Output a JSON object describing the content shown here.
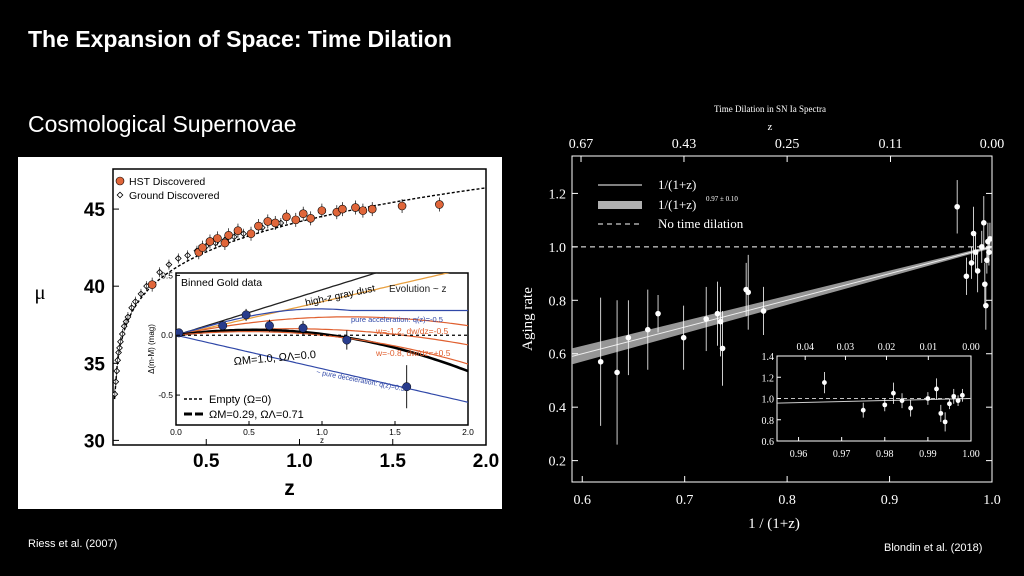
{
  "slide": {
    "title": "The Expansion of Space: Time Dilation",
    "subtitle": "Cosmological Supernovae",
    "credit_left": "Riess et al. (2007)",
    "credit_right": "Blondin et al. (2018)"
  },
  "chart_data": [
    {
      "type": "scatter",
      "xlabel": "z",
      "ylabel": "μ",
      "xlim": [
        0,
        2.0
      ],
      "ylim": [
        29.7,
        47.6
      ],
      "xticks": [
        "0.5",
        "1.0",
        "1.5",
        "2.0"
      ],
      "xtick_values": [
        0.5,
        1.0,
        1.5,
        2.0
      ],
      "yticks": [
        "30",
        "35",
        "40",
        "45"
      ],
      "ytick_values": [
        30,
        35,
        40,
        45
      ],
      "legend": [
        "HST Discovered",
        "Ground Discovered"
      ],
      "colors": {
        "hst": "#e0663a",
        "ground": "#000000",
        "binned": "#283c8c"
      },
      "series": [
        {
          "name": "HST Discovered",
          "points": [
            [
              0.21,
              40.1
            ],
            [
              0.46,
              42.2
            ],
            [
              0.48,
              42.5
            ],
            [
              0.52,
              42.9
            ],
            [
              0.56,
              43.1
            ],
            [
              0.6,
              42.8
            ],
            [
              0.62,
              43.3
            ],
            [
              0.67,
              43.6
            ],
            [
              0.74,
              43.4
            ],
            [
              0.78,
              43.9
            ],
            [
              0.83,
              44.2
            ],
            [
              0.87,
              44.1
            ],
            [
              0.93,
              44.5
            ],
            [
              0.98,
              44.3
            ],
            [
              1.02,
              44.7
            ],
            [
              1.06,
              44.4
            ],
            [
              1.12,
              44.9
            ],
            [
              1.2,
              44.8
            ],
            [
              1.23,
              45.0
            ],
            [
              1.3,
              45.1
            ],
            [
              1.34,
              44.9
            ],
            [
              1.39,
              45.0
            ],
            [
              1.55,
              45.2
            ],
            [
              1.75,
              45.3
            ]
          ]
        },
        {
          "name": "Ground Discovered",
          "points": [
            [
              0.01,
              33.0
            ],
            [
              0.015,
              33.8
            ],
            [
              0.02,
              34.5
            ],
            [
              0.025,
              35.2
            ],
            [
              0.03,
              35.7
            ],
            [
              0.035,
              36.0
            ],
            [
              0.04,
              36.4
            ],
            [
              0.05,
              36.9
            ],
            [
              0.06,
              37.4
            ],
            [
              0.07,
              37.7
            ],
            [
              0.08,
              38.0
            ],
            [
              0.1,
              38.6
            ],
            [
              0.12,
              39.0
            ],
            [
              0.15,
              39.5
            ],
            [
              0.18,
              40.0
            ],
            [
              0.25,
              40.9
            ],
            [
              0.3,
              41.4
            ],
            [
              0.35,
              41.8
            ],
            [
              0.4,
              42.0
            ],
            [
              0.45,
              42.3
            ],
            [
              0.5,
              42.6
            ],
            [
              0.55,
              42.8
            ],
            [
              0.6,
              43.0
            ],
            [
              0.65,
              43.2
            ],
            [
              0.7,
              43.4
            ],
            [
              0.8,
              43.8
            ],
            [
              0.9,
              44.1
            ]
          ]
        }
      ],
      "inset": {
        "title": "Binned Gold data",
        "xlabel": "z",
        "ylabel": "Δ(m-M) (mag)",
        "xlim": [
          0,
          2.0
        ],
        "ylim": [
          -0.75,
          0.52
        ],
        "xticks": [
          "0.0",
          "0.5",
          "1.0",
          "1.5",
          "2.0"
        ],
        "xtick_values": [
          0,
          0.5,
          1.0,
          1.5,
          2.0
        ],
        "yticks": [
          "-0.5",
          "0.0",
          "0.5"
        ],
        "ytick_values": [
          -0.5,
          0,
          0.5
        ],
        "binned_points": [
          [
            0.02,
            0.02,
            0.02
          ],
          [
            0.32,
            0.08,
            0.04
          ],
          [
            0.48,
            0.17,
            0.05
          ],
          [
            0.64,
            0.08,
            0.05
          ],
          [
            0.87,
            0.06,
            0.06
          ],
          [
            1.17,
            -0.04,
            0.08
          ],
          [
            1.58,
            -0.43,
            0.18
          ]
        ],
        "curve_labels": {
          "gray_dust": "high-z gray dust",
          "evolution": "Evolution ~ z",
          "acceleration": "pure acceleration: q(z)=-0.5",
          "w1": "w=-1.2, dw/dz=-0.5",
          "w2": "w=-0.8, dw/dz=+0.5",
          "omega": "ΩM=1.0, ΩΛ=0.0",
          "deceleration": "~ pure deceleration: q(z)=0.5"
        },
        "legend": [
          "Empty (Ω=0)",
          "ΩM=0.29, ΩΛ=0.71"
        ]
      }
    },
    {
      "type": "scatter",
      "title": "Time Dilation in SN Ia Spectra",
      "xlabel": "1 / (1+z)",
      "ylabel": "Aging rate",
      "top_axis_label": "z",
      "xlim": [
        0.59,
        1.0
      ],
      "ylim": [
        0.12,
        1.34
      ],
      "xticks": [
        "0.6",
        "0.7",
        "0.8",
        "0.9",
        "1.0"
      ],
      "xtick_values": [
        0.6,
        0.7,
        0.8,
        0.9,
        1.0
      ],
      "yticks": [
        "0.2",
        "0.4",
        "0.6",
        "0.8",
        "1.0",
        "1.2"
      ],
      "ytick_values": [
        0.2,
        0.4,
        0.6,
        0.8,
        1.0,
        1.2
      ],
      "top_ticks": [
        "0.67",
        "0.43",
        "0.25",
        "0.11",
        "0.00"
      ],
      "legend": [
        "1/(1+z)",
        "1/(1+z)",
        "No time dilation"
      ],
      "legend_exponent": "0.97 ± 0.10",
      "points": [
        [
          0.618,
          0.57,
          0.24
        ],
        [
          0.634,
          0.53,
          0.27
        ],
        [
          0.645,
          0.66,
          0.14
        ],
        [
          0.664,
          0.69,
          0.15
        ],
        [
          0.674,
          0.75,
          0.07
        ],
        [
          0.699,
          0.66,
          0.12
        ],
        [
          0.721,
          0.73,
          0.12
        ],
        [
          0.732,
          0.75,
          0.12
        ],
        [
          0.735,
          0.72,
          0.13
        ],
        [
          0.737,
          0.62,
          0.14
        ],
        [
          0.76,
          0.84,
          0.1
        ],
        [
          0.762,
          0.83,
          0.14
        ],
        [
          0.777,
          0.76,
          0.09
        ],
        [
          0.966,
          1.15,
          0.1
        ],
        [
          0.975,
          0.89,
          0.07
        ],
        [
          0.98,
          0.94,
          0.06
        ],
        [
          0.982,
          1.05,
          0.1
        ],
        [
          0.984,
          0.98,
          0.07
        ],
        [
          0.986,
          0.91,
          0.08
        ],
        [
          0.99,
          1.0,
          0.06
        ],
        [
          0.992,
          1.09,
          0.1
        ],
        [
          0.993,
          0.86,
          0.08
        ],
        [
          0.994,
          0.78,
          0.09
        ],
        [
          0.995,
          0.95,
          0.05
        ],
        [
          0.996,
          1.02,
          0.07
        ],
        [
          0.997,
          0.98,
          0.05
        ],
        [
          0.998,
          1.03,
          0.06
        ]
      ],
      "inset": {
        "xlim": [
          0.955,
          1.0
        ],
        "ylim": [
          0.6,
          1.4
        ],
        "xticks": [
          "0.96",
          "0.97",
          "0.98",
          "0.99",
          "1.00"
        ],
        "xtick_values": [
          0.96,
          0.97,
          0.98,
          0.99,
          1.0
        ],
        "yticks": [
          "0.6",
          "0.8",
          "1.0",
          "1.2",
          "1.4"
        ],
        "ytick_values": [
          0.6,
          0.8,
          1.0,
          1.2,
          1.4
        ],
        "top_ticks": [
          "0.04",
          "0.03",
          "0.02",
          "0.01",
          "0.00"
        ]
      }
    }
  ]
}
